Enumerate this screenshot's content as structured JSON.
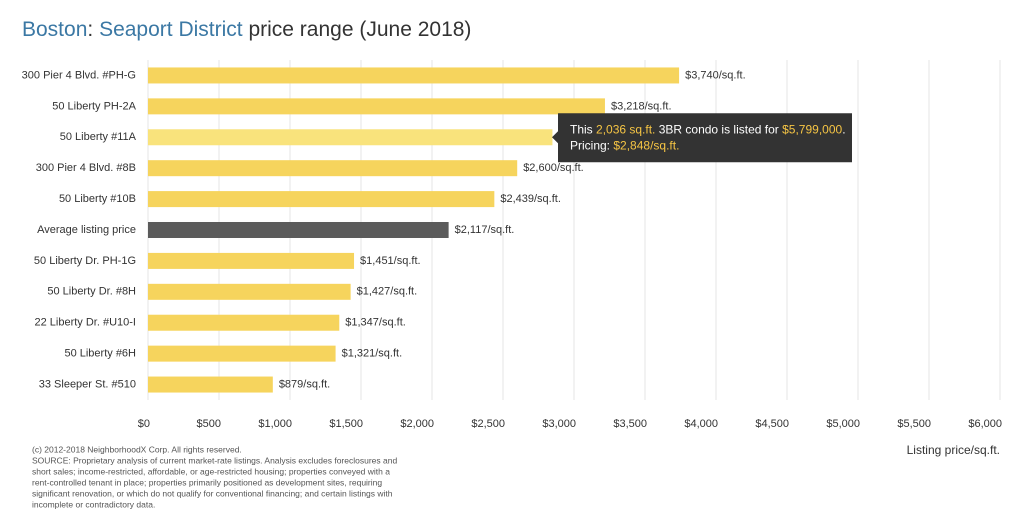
{
  "chart_data": {
    "type": "bar",
    "orientation": "horizontal",
    "title_parts": [
      {
        "text": "Boston",
        "accent": true
      },
      {
        "text": ": "
      },
      {
        "text": "Seaport District",
        "accent": true
      },
      {
        "text": " price range (June 2018)"
      }
    ],
    "categories": [
      "300 Pier 4 Blvd. #PH-G",
      "50 Liberty PH-2A",
      "50 Liberty #11A",
      "300 Pier 4 Blvd. #8B",
      "50 Liberty #10B",
      "Average listing price",
      "50 Liberty Dr. PH-1G",
      "50 Liberty Dr. #8H",
      "22 Liberty Dr. #U10-I",
      "50 Liberty #6H",
      "33 Sleeper St. #510"
    ],
    "values": [
      3740,
      3218,
      2848,
      2600,
      2439,
      2117,
      1451,
      1427,
      1347,
      1321,
      879
    ],
    "value_labels": [
      "$3,740/sq.ft.",
      "$3,218/sq.ft.",
      null,
      "$2,600/sq.ft.",
      "$2,439/sq.ft.",
      "$2,117/sq.ft.",
      "$1,451/sq.ft.",
      "$1,427/sq.ft.",
      "$1,347/sq.ft.",
      "$1,321/sq.ft.",
      "$879/sq.ft."
    ],
    "colors": [
      "#f6d45d",
      "#f6d45d",
      "#f9e37c",
      "#f6d45d",
      "#f6d45d",
      "#5b5b5b",
      "#f6d45d",
      "#f6d45d",
      "#f6d45d",
      "#f6d45d",
      "#f6d45d"
    ],
    "xlim": [
      0,
      6000
    ],
    "xticks": [
      {
        "value": 0,
        "label": "$0"
      },
      {
        "value": 500,
        "label": "$500"
      },
      {
        "value": 1000,
        "label": "$1,000"
      },
      {
        "value": 1500,
        "label": "$1,500"
      },
      {
        "value": 2000,
        "label": "$2,000"
      },
      {
        "value": 2500,
        "label": "$2,500"
      },
      {
        "value": 3000,
        "label": "$3,000"
      },
      {
        "value": 3500,
        "label": "$3,500"
      },
      {
        "value": 4000,
        "label": "$4,000"
      },
      {
        "value": 4500,
        "label": "$4,500"
      },
      {
        "value": 5000,
        "label": "$5,000"
      },
      {
        "value": 5500,
        "label": "$5,500"
      },
      {
        "value": 6000,
        "label": "$6,000"
      }
    ],
    "grid": true,
    "x_label": "Listing price/sq.ft.",
    "tooltip": {
      "category_index": 2,
      "lines": [
        [
          {
            "text": "This "
          },
          {
            "text": "2,036 sq.ft.",
            "highlight": true
          },
          {
            "text": " 3BR condo is listed for "
          },
          {
            "text": "$5,799,000",
            "highlight": true
          },
          {
            "text": "."
          }
        ],
        [
          {
            "text": "Pricing: "
          },
          {
            "text": "$2,848/sq.ft.",
            "highlight": true
          }
        ]
      ]
    },
    "footnote": [
      "(c) 2012-2018 NeighborhoodX Corp. All rights reserved.",
      "SOURCE: Proprietary analysis of current market-rate listings. Analysis excludes foreclosures and",
      "short sales; income-restricted, affordable, or age-restricted housing; properties conveyed with a",
      "rent-controlled tenant in place; properties primarily positioned as development sites, requiring",
      "significant renovation, or which do not qualify for conventional financing; and certain listings with",
      "incomplete or contradictory data."
    ]
  }
}
